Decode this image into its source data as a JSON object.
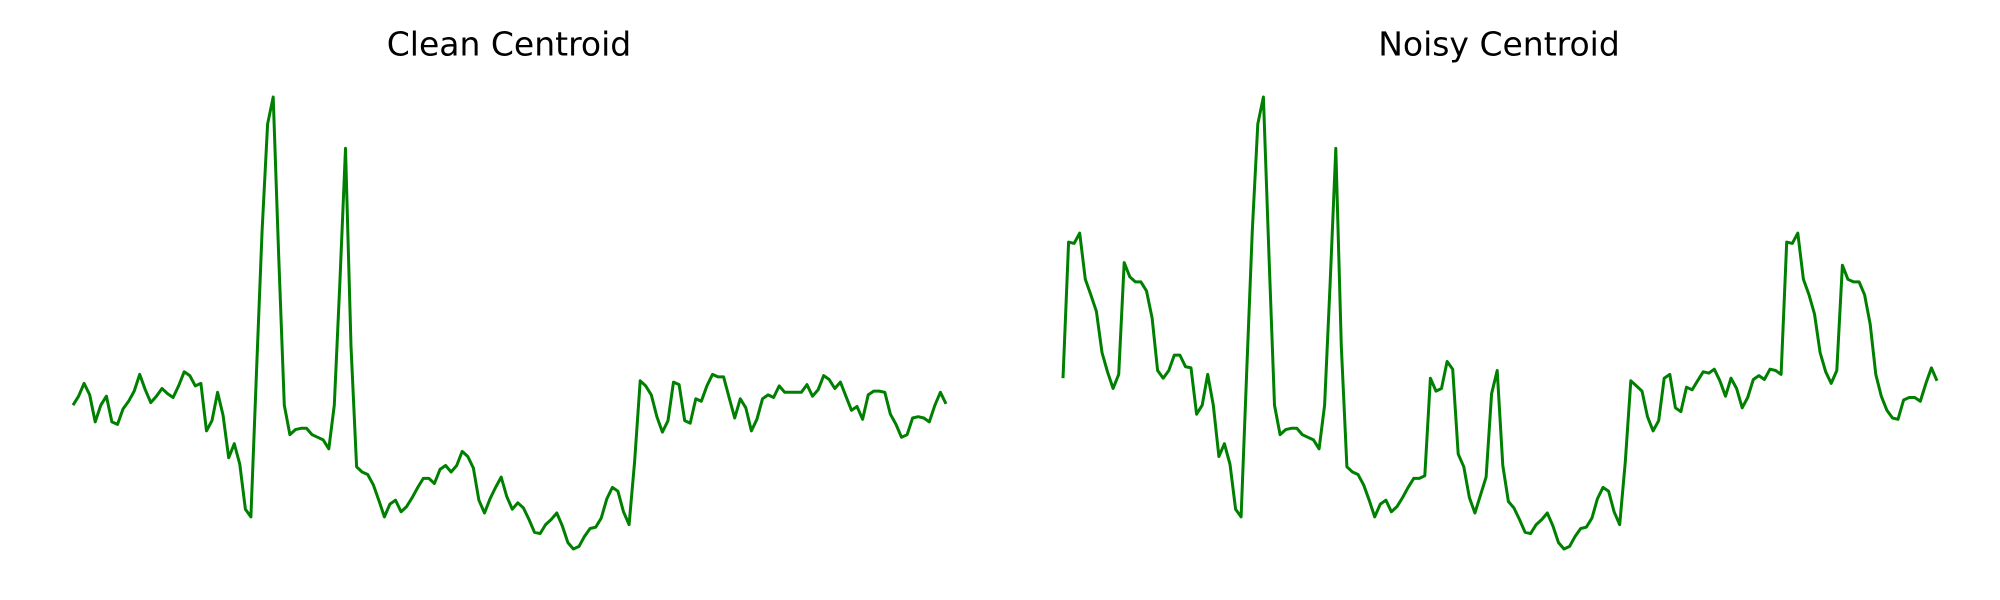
{
  "chart_data": [
    {
      "type": "line",
      "title": "Clean Centroid",
      "color": "#008000",
      "values": [
        144,
        151,
        161,
        152,
        131,
        144,
        151,
        131,
        129,
        141,
        147,
        155,
        168,
        156,
        146,
        151,
        157,
        153,
        150,
        159,
        170,
        167,
        159,
        161,
        124,
        132,
        154,
        136,
        103,
        114,
        98,
        63,
        57,
        170,
        280,
        363,
        384,
        260,
        144,
        121,
        125,
        126,
        126,
        121,
        119,
        117,
        110,
        144,
        240,
        344,
        190,
        96,
        92,
        90,
        82,
        70,
        57,
        67,
        70,
        61,
        65,
        72,
        80,
        87,
        87,
        83,
        94,
        97,
        92,
        97,
        108,
        104,
        95,
        70,
        60,
        71,
        80,
        88,
        73,
        63,
        68,
        64,
        55,
        45,
        44,
        51,
        55,
        60,
        50,
        37,
        32,
        34,
        42,
        48,
        49,
        56,
        71,
        80,
        77,
        61,
        51,
        100,
        163,
        159,
        152,
        135,
        123,
        132,
        162,
        160,
        132,
        130,
        149,
        147,
        159,
        168,
        166,
        166,
        150,
        134,
        149,
        142,
        124,
        133,
        149,
        152,
        150,
        159,
        154,
        154,
        154,
        154,
        160,
        151,
        156,
        167,
        164,
        157,
        162,
        151,
        140,
        143,
        133,
        152,
        155,
        155,
        154,
        137,
        129,
        119,
        121,
        134,
        135,
        134,
        131,
        144,
        154,
        145
      ]
    },
    {
      "type": "line",
      "title": "Noisy Centroid",
      "color": "#008000",
      "values": [
        165,
        271,
        270,
        278,
        242,
        230,
        217,
        185,
        170,
        157,
        168,
        255,
        244,
        240,
        240,
        233,
        212,
        171,
        165,
        171,
        183,
        183,
        174,
        173,
        137,
        144,
        168,
        144,
        104,
        114,
        98,
        63,
        57,
        170,
        280,
        363,
        384,
        260,
        144,
        121,
        125,
        126,
        126,
        121,
        119,
        117,
        110,
        144,
        240,
        344,
        190,
        96,
        92,
        90,
        82,
        70,
        57,
        67,
        70,
        61,
        65,
        72,
        80,
        87,
        87,
        89,
        165,
        155,
        157,
        178,
        172,
        106,
        96,
        72,
        60,
        74,
        88,
        153,
        171,
        97,
        69,
        64,
        55,
        45,
        44,
        51,
        55,
        60,
        50,
        37,
        32,
        34,
        42,
        48,
        49,
        56,
        71,
        80,
        77,
        61,
        51,
        100,
        163,
        159,
        155,
        135,
        124,
        132,
        165,
        168,
        142,
        139,
        158,
        156,
        163,
        170,
        169,
        172,
        163,
        151,
        165,
        157,
        142,
        150,
        164,
        167,
        164,
        172,
        171,
        168,
        271,
        270,
        278,
        242,
        230,
        215,
        185,
        170,
        161,
        171,
        253,
        242,
        240,
        240,
        230,
        207,
        168,
        151,
        140,
        134,
        133,
        148,
        150,
        150,
        147,
        161,
        173,
        163
      ]
    }
  ]
}
